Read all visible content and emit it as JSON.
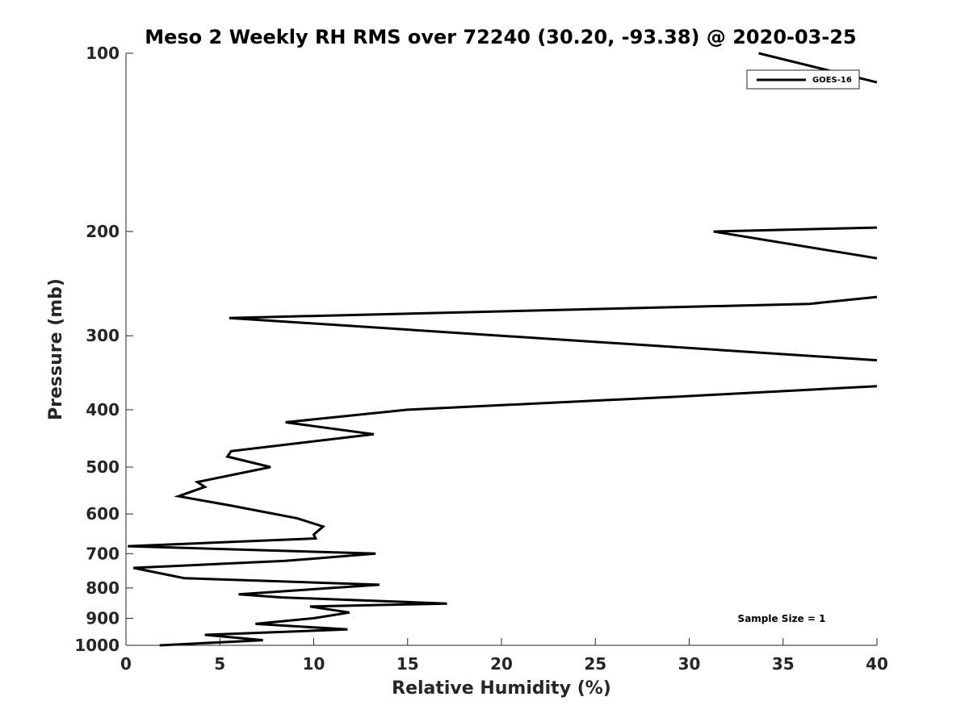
{
  "chart_data": {
    "type": "line",
    "title": "Meso 2 Weekly RH RMS over 72240 (30.20, -93.38) @ 2020-03-25",
    "xlabel": "Relative Humidity (%)",
    "ylabel": "Pressure (mb)",
    "xlim": [
      0,
      40
    ],
    "ylim": [
      100,
      1000
    ],
    "yscale": "log",
    "yreverse": true,
    "x_ticks": [
      0,
      5,
      10,
      15,
      20,
      25,
      30,
      35,
      40
    ],
    "x_tick_labels": [
      "0",
      "5",
      "10",
      "15",
      "20",
      "25",
      "30",
      "35",
      "40"
    ],
    "y_ticks": [
      100,
      200,
      300,
      400,
      500,
      600,
      700,
      800,
      900,
      1000
    ],
    "y_tick_labels": [
      "100",
      "200",
      "300",
      "400",
      "500",
      "600",
      "700",
      "800",
      "900",
      "1000"
    ],
    "grid": false,
    "legend_position": "top-right",
    "series": [
      {
        "name": "GOES-16",
        "color": "#000000",
        "x": [
          1.8,
          7.3,
          4.2,
          11.8,
          6.9,
          10.0,
          11.9,
          9.8,
          17.1,
          8.3,
          6.0,
          13.5,
          3.1,
          0.4,
          8.5,
          13.3,
          0.1,
          10.1,
          10.0,
          10.5,
          9.1,
          5.5,
          2.8,
          4.2,
          3.8,
          7.7,
          5.4,
          5.6,
          13.2,
          8.5,
          15.0,
          29.5,
          40.0
        ],
        "y": [
          1000,
          980,
          960,
          940,
          920,
          900,
          880,
          860,
          850,
          830,
          820,
          790,
          770,
          740,
          720,
          700,
          680,
          660,
          650,
          630,
          610,
          580,
          560,
          540,
          530,
          500,
          480,
          470,
          440,
          420,
          400,
          380,
          365
        ]
      },
      {
        "name": "GOES-16",
        "color": "#000000",
        "x": [
          40.0,
          5.5,
          36.4,
          40.0
        ],
        "y": [
          330,
          280,
          265,
          258
        ]
      },
      {
        "name": "GOES-16",
        "color": "#000000",
        "x": [
          40.0,
          31.3,
          40.0
        ],
        "y": [
          222,
          200,
          197
        ]
      },
      {
        "name": "GOES-16",
        "color": "#000000",
        "x": [
          40.0,
          33.7
        ],
        "y": [
          112,
          100
        ]
      }
    ],
    "legend": [
      {
        "label": "GOES-16",
        "color": "#000000"
      }
    ],
    "annotations": [
      {
        "text": "Sample Size = 1",
        "position": "bottom-right"
      }
    ]
  }
}
